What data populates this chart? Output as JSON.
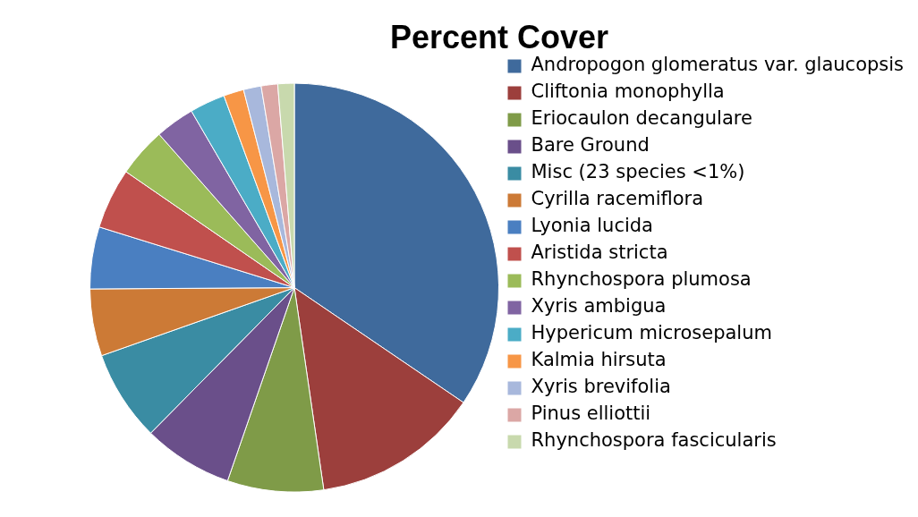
{
  "chart_data": {
    "type": "pie",
    "title": "Percent Cover",
    "categories": [
      "Andropogon glomeratus var. glaucopsis",
      "Cliftonia monophylla",
      "Eriocaulon decangulare",
      "Bare Ground",
      "Misc (23 species <1%)",
      "Cyrilla racemiflora",
      "Lyonia lucida",
      "Aristida stricta",
      "Rhynchospora plumosa",
      "Xyris ambigua",
      "Hypericum microsepalum",
      "Kalmia hirsuta",
      "Xyris brevifolia",
      "Pinus elliottii",
      "Rhynchospora fascicularis"
    ],
    "values": [
      34.5,
      13.2,
      7.6,
      7.1,
      7.2,
      5.3,
      4.9,
      4.8,
      3.9,
      3.1,
      2.8,
      1.6,
      1.4,
      1.3,
      1.3
    ],
    "colors": [
      "#3f6a9c",
      "#9c3f3c",
      "#7f9b48",
      "#6a4f8a",
      "#3a8ca3",
      "#cc7a36",
      "#4a7fc1",
      "#c0504d",
      "#9bbb59",
      "#8064a2",
      "#4bacc6",
      "#f79646",
      "#a8b8dc",
      "#dba7a5",
      "#c8d9ad"
    ],
    "legend": "right"
  }
}
